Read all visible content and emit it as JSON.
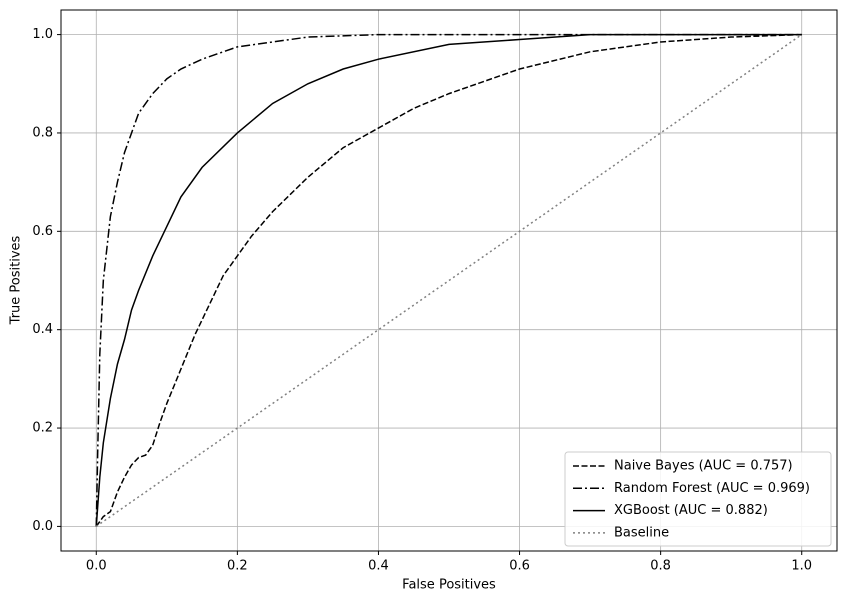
{
  "chart_data": {
    "type": "line",
    "xlabel": "False Positives",
    "ylabel": "True Positives",
    "xlim": [
      -0.05,
      1.05
    ],
    "ylim": [
      -0.05,
      1.05
    ],
    "xticks": [
      {
        "value": 0,
        "label": "0.0"
      },
      0.2,
      0.4,
      0.6,
      0.8,
      {
        "value": 1,
        "label": "1.0"
      }
    ],
    "yticks": [
      {
        "value": 0,
        "label": "0.0"
      },
      0.2,
      0.4,
      0.6,
      0.8,
      {
        "value": 1,
        "label": "1.0"
      }
    ],
    "grid": true,
    "legend": "lower right",
    "series": [
      {
        "name": "Naive Bayes (AUC = 0.757)",
        "color": "#000000",
        "dash": "dashed",
        "x": [
          0,
          0.01,
          0.02,
          0.03,
          0.04,
          0.05,
          0.06,
          0.07,
          0.08,
          0.09,
          0.1,
          0.12,
          0.14,
          0.16,
          0.18,
          0.2,
          0.22,
          0.25,
          0.3,
          0.35,
          0.4,
          0.45,
          0.5,
          0.6,
          0.7,
          0.8,
          0.9,
          1.0
        ],
        "values": [
          0,
          0.02,
          0.03,
          0.07,
          0.1,
          0.125,
          0.14,
          0.145,
          0.165,
          0.21,
          0.25,
          0.32,
          0.39,
          0.45,
          0.51,
          0.55,
          0.59,
          0.64,
          0.71,
          0.77,
          0.81,
          0.85,
          0.88,
          0.93,
          0.965,
          0.985,
          0.995,
          1.0
        ]
      },
      {
        "name": "Random Forest (AUC = 0.969)",
        "color": "#000000",
        "dash": "dashdot",
        "x": [
          0,
          0.002,
          0.005,
          0.01,
          0.02,
          0.03,
          0.04,
          0.05,
          0.06,
          0.08,
          0.1,
          0.12,
          0.15,
          0.2,
          0.25,
          0.3,
          0.4,
          0.6,
          0.8,
          1.0
        ],
        "values": [
          0,
          0.15,
          0.35,
          0.5,
          0.63,
          0.7,
          0.76,
          0.8,
          0.84,
          0.88,
          0.91,
          0.93,
          0.95,
          0.975,
          0.985,
          0.995,
          1.0,
          1.0,
          1.0,
          1.0
        ]
      },
      {
        "name": "XGBoost (AUC = 0.882)",
        "color": "#000000",
        "dash": "solid",
        "x": [
          0,
          0.005,
          0.01,
          0.02,
          0.03,
          0.04,
          0.05,
          0.06,
          0.08,
          0.1,
          0.12,
          0.15,
          0.2,
          0.25,
          0.3,
          0.35,
          0.4,
          0.5,
          0.6,
          0.7,
          0.8,
          1.0
        ],
        "values": [
          0,
          0.1,
          0.17,
          0.26,
          0.33,
          0.38,
          0.44,
          0.48,
          0.55,
          0.61,
          0.67,
          0.73,
          0.8,
          0.86,
          0.9,
          0.93,
          0.95,
          0.98,
          0.99,
          1.0,
          1.0,
          1.0
        ]
      },
      {
        "name": "Baseline",
        "color": "#808080",
        "dash": "dotted",
        "x": [
          0,
          1
        ],
        "values": [
          0,
          1
        ]
      }
    ]
  }
}
